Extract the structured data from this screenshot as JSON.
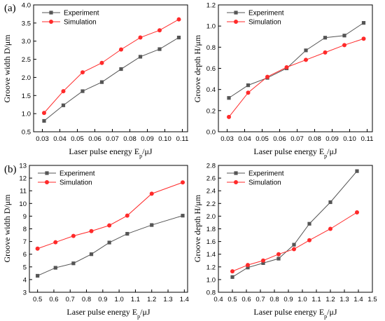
{
  "figure": {
    "panel_a_label": "(a)",
    "panel_b_label": "(b)"
  },
  "colors": {
    "experiment": "#555555",
    "simulation": "#ff2a2a",
    "axis": "#000000"
  },
  "chart_data": [
    {
      "type": "line",
      "panel": "(a)",
      "xlabel": "Laser pulse energy E_p/μJ",
      "ylabel": "Groove width D/μm",
      "xlim": [
        0.025,
        0.113
      ],
      "ylim": [
        0.5,
        4.0
      ],
      "xticks": [
        0.03,
        0.04,
        0.05,
        0.06,
        0.07,
        0.08,
        0.09,
        0.1,
        0.11
      ],
      "xtick_labels": [
        "0.03",
        "0.04",
        "0.05",
        "0.06",
        "0.07",
        "0.08",
        "0.09",
        "0.10",
        "0.11"
      ],
      "yticks": [
        0.5,
        1.0,
        1.5,
        2.0,
        2.5,
        3.0,
        3.5,
        4.0
      ],
      "ytick_labels": [
        "0.5",
        "1.0",
        "1.5",
        "2.0",
        "2.5",
        "3.0",
        "3.5",
        "4.0"
      ],
      "legend": "top-left",
      "x": [
        0.031,
        0.042,
        0.053,
        0.064,
        0.075,
        0.086,
        0.097,
        0.108
      ],
      "series": [
        {
          "name": "Experiment",
          "marker": "square",
          "color": "#555555",
          "values": [
            0.8,
            1.23,
            1.62,
            1.87,
            2.23,
            2.57,
            2.78,
            3.1
          ]
        },
        {
          "name": "Simulation",
          "marker": "circle",
          "color": "#ff2a2a",
          "values": [
            1.02,
            1.62,
            2.14,
            2.4,
            2.77,
            3.1,
            3.3,
            3.6
          ]
        }
      ]
    },
    {
      "type": "line",
      "panel": "(a)",
      "xlabel": "Laser pulse energy E_p/μJ",
      "ylabel": "Groove depth H/μm",
      "xlim": [
        0.025,
        0.113
      ],
      "ylim": [
        0.0,
        1.2
      ],
      "xticks": [
        0.03,
        0.04,
        0.05,
        0.06,
        0.07,
        0.08,
        0.09,
        0.1,
        0.11
      ],
      "xtick_labels": [
        "0.03",
        "0.04",
        "0.05",
        "0.06",
        "0.07",
        "0.08",
        "0.09",
        "0.10",
        "0.11"
      ],
      "yticks": [
        0.0,
        0.2,
        0.4,
        0.6,
        0.8,
        1.0,
        1.2
      ],
      "ytick_labels": [
        "0.0",
        "0.2",
        "0.4",
        "0.6",
        "0.8",
        "1.0",
        "1.2"
      ],
      "legend": "top-left",
      "x": [
        0.031,
        0.042,
        0.053,
        0.064,
        0.075,
        0.086,
        0.097,
        0.108
      ],
      "series": [
        {
          "name": "Experiment",
          "marker": "square",
          "color": "#555555",
          "values": [
            0.32,
            0.44,
            0.51,
            0.6,
            0.77,
            0.89,
            0.91,
            1.03
          ]
        },
        {
          "name": "Simulation",
          "marker": "circle",
          "color": "#ff2a2a",
          "values": [
            0.14,
            0.37,
            0.52,
            0.61,
            0.68,
            0.75,
            0.82,
            0.88
          ]
        }
      ]
    },
    {
      "type": "line",
      "panel": "(b)",
      "xlabel": "Laser pulse energy E_p/μJ",
      "ylabel": "Groove width D/μm",
      "xlim": [
        0.45,
        1.42
      ],
      "ylim": [
        3,
        13
      ],
      "xticks": [
        0.5,
        0.6,
        0.7,
        0.8,
        0.9,
        1.0,
        1.1,
        1.2,
        1.3,
        1.4
      ],
      "xtick_labels": [
        "0.5",
        "0.6",
        "0.7",
        "0.8",
        "0.9",
        "1.0",
        "1.1",
        "1.2",
        "1.3",
        "1.4"
      ],
      "yticks": [
        3,
        4,
        5,
        6,
        7,
        8,
        9,
        10,
        11,
        12,
        13
      ],
      "ytick_labels": [
        "3",
        "4",
        "5",
        "6",
        "7",
        "8",
        "9",
        "10",
        "11",
        "12",
        "13"
      ],
      "legend": "top-left",
      "x": [
        0.5,
        0.61,
        0.72,
        0.83,
        0.94,
        1.05,
        1.2,
        1.39
      ],
      "series": [
        {
          "name": "Experiment",
          "marker": "square",
          "color": "#555555",
          "values": [
            4.3,
            4.93,
            5.28,
            6.0,
            6.92,
            7.61,
            8.3,
            9.04
          ]
        },
        {
          "name": "Simulation",
          "marker": "circle",
          "color": "#ff2a2a",
          "values": [
            6.44,
            6.94,
            7.44,
            7.82,
            8.27,
            9.04,
            10.77,
            11.66
          ]
        }
      ]
    },
    {
      "type": "line",
      "panel": "(b)",
      "xlabel": "Laser pulse energy E_p/μJ",
      "ylabel": "Groove depth H/μm",
      "xlim": [
        0.4,
        1.5
      ],
      "ylim": [
        0.8,
        2.8
      ],
      "xticks": [
        0.4,
        0.5,
        0.6,
        0.7,
        0.8,
        0.9,
        1.0,
        1.1,
        1.2,
        1.3,
        1.4,
        1.5
      ],
      "xtick_labels": [
        "0.4",
        "0.5",
        "0.6",
        "0.7",
        "0.8",
        "0.9",
        "1.0",
        "1.1",
        "1.2",
        "1.3",
        "1.4",
        "1.5"
      ],
      "yticks": [
        0.8,
        1.0,
        1.2,
        1.4,
        1.6,
        1.8,
        2.0,
        2.2,
        2.4,
        2.6,
        2.8
      ],
      "ytick_labels": [
        "0.8",
        "1.0",
        "1.2",
        "1.4",
        "1.6",
        "1.8",
        "2.0",
        "2.2",
        "2.4",
        "2.6",
        "2.8"
      ],
      "legend": "top-left",
      "x": [
        0.5,
        0.61,
        0.72,
        0.83,
        0.94,
        1.05,
        1.2,
        1.39
      ],
      "series": [
        {
          "name": "Experiment",
          "marker": "square",
          "color": "#555555",
          "values": [
            1.04,
            1.19,
            1.26,
            1.33,
            1.55,
            1.88,
            2.22,
            2.71
          ]
        },
        {
          "name": "Simulation",
          "marker": "circle",
          "color": "#ff2a2a",
          "values": [
            1.13,
            1.23,
            1.3,
            1.4,
            1.48,
            1.62,
            1.8,
            2.06
          ]
        }
      ]
    }
  ]
}
